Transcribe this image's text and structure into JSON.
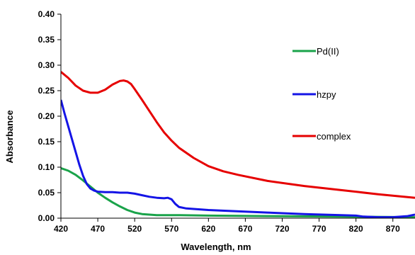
{
  "chart_data": {
    "type": "line",
    "xlabel": "Wavelength,  nm",
    "ylabel": "Absorbance",
    "xlim": [
      420,
      900
    ],
    "ylim": [
      0,
      0.4
    ],
    "x_ticks": [
      "420",
      "470",
      "520",
      "570",
      "620",
      "670",
      "720",
      "770",
      "820",
      "870"
    ],
    "x_tick_values": [
      420,
      470,
      520,
      570,
      620,
      670,
      720,
      770,
      820,
      870
    ],
    "y_ticks": [
      "0.00",
      "0.05",
      "0.10",
      "0.15",
      "0.20",
      "0.25",
      "0.30",
      "0.35",
      "0.40"
    ],
    "y_tick_values": [
      0,
      0.05,
      0.1,
      0.15,
      0.2,
      0.25,
      0.3,
      0.35,
      0.4
    ],
    "grid": false,
    "legend_position": "right",
    "series": [
      {
        "name": "Pd(II)",
        "color": "#1aa34a",
        "x": [
          420,
          430,
          440,
          450,
          460,
          470,
          480,
          490,
          500,
          510,
          520,
          530,
          540,
          550,
          560,
          580,
          620,
          700,
          800,
          900
        ],
        "y": [
          0.098,
          0.093,
          0.085,
          0.074,
          0.062,
          0.05,
          0.04,
          0.031,
          0.023,
          0.016,
          0.011,
          0.008,
          0.007,
          0.006,
          0.006,
          0.006,
          0.005,
          0.004,
          0.003,
          0.002
        ]
      },
      {
        "name": "hzpy",
        "color": "#1414e6",
        "x": [
          420,
          425,
          430,
          435,
          440,
          445,
          450,
          455,
          460,
          465,
          470,
          480,
          490,
          500,
          510,
          520,
          530,
          540,
          550,
          560,
          565,
          570,
          575,
          580,
          590,
          600,
          620,
          650,
          700,
          750,
          800,
          820,
          830,
          850,
          870,
          890,
          900
        ],
        "y": [
          0.232,
          0.205,
          0.18,
          0.155,
          0.13,
          0.105,
          0.083,
          0.067,
          0.058,
          0.054,
          0.052,
          0.051,
          0.051,
          0.05,
          0.05,
          0.048,
          0.045,
          0.042,
          0.04,
          0.039,
          0.04,
          0.037,
          0.028,
          0.022,
          0.019,
          0.018,
          0.016,
          0.014,
          0.011,
          0.008,
          0.006,
          0.005,
          0.003,
          0.002,
          0.002,
          0.004,
          0.007
        ]
      },
      {
        "name": "complex",
        "color": "#e60000",
        "x": [
          420,
          430,
          440,
          450,
          460,
          470,
          480,
          490,
          500,
          505,
          510,
          515,
          520,
          530,
          540,
          550,
          560,
          570,
          580,
          600,
          620,
          640,
          660,
          700,
          750,
          800,
          850,
          900
        ],
        "y": [
          0.287,
          0.275,
          0.26,
          0.25,
          0.246,
          0.246,
          0.252,
          0.262,
          0.269,
          0.27,
          0.268,
          0.263,
          0.253,
          0.232,
          0.21,
          0.188,
          0.168,
          0.152,
          0.138,
          0.118,
          0.102,
          0.092,
          0.085,
          0.073,
          0.063,
          0.055,
          0.047,
          0.04
        ]
      }
    ]
  }
}
